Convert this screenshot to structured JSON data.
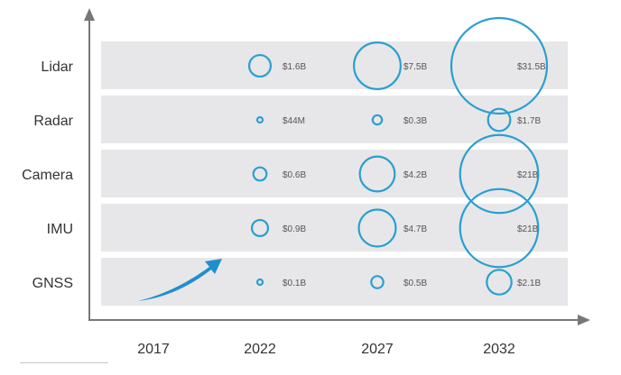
{
  "chart_data": {
    "type": "bubble",
    "categories": [
      "Lidar",
      "Radar",
      "Camera",
      "IMU",
      "GNSS"
    ],
    "x": [
      "2017",
      "2022",
      "2027",
      "2032"
    ],
    "points": [
      {
        "category": "Lidar",
        "year": "2022",
        "value": 1.6,
        "label": "$1.6B"
      },
      {
        "category": "Lidar",
        "year": "2027",
        "value": 7.5,
        "label": "$7.5B"
      },
      {
        "category": "Lidar",
        "year": "2032",
        "value": 31.5,
        "label": "$31.5B"
      },
      {
        "category": "Radar",
        "year": "2022",
        "value": 0.044,
        "label": "$44M"
      },
      {
        "category": "Radar",
        "year": "2027",
        "value": 0.3,
        "label": "$0.3B"
      },
      {
        "category": "Radar",
        "year": "2032",
        "value": 1.7,
        "label": "$1.7B"
      },
      {
        "category": "Camera",
        "year": "2022",
        "value": 0.6,
        "label": "$0.6B"
      },
      {
        "category": "Camera",
        "year": "2027",
        "value": 4.2,
        "label": "$4.2B"
      },
      {
        "category": "Camera",
        "year": "2032",
        "value": 21,
        "label": "$21B"
      },
      {
        "category": "IMU",
        "year": "2022",
        "value": 0.9,
        "label": "$0.9B"
      },
      {
        "category": "IMU",
        "year": "2027",
        "value": 4.7,
        "label": "$4.7B"
      },
      {
        "category": "IMU",
        "year": "2032",
        "value": 21,
        "label": "$21B"
      },
      {
        "category": "GNSS",
        "year": "2022",
        "value": 0.1,
        "label": "$0.1B"
      },
      {
        "category": "GNSS",
        "year": "2027",
        "value": 0.5,
        "label": "$0.5B"
      },
      {
        "category": "GNSS",
        "year": "2032",
        "value": 2.1,
        "label": "$2.1B"
      }
    ],
    "title": "",
    "xlabel": "",
    "ylabel": "",
    "colors": {
      "bubble": "#2a9fd0",
      "row_band": "#e7e7e9",
      "axis": "#777777",
      "arrow": "#1e8fce"
    }
  }
}
